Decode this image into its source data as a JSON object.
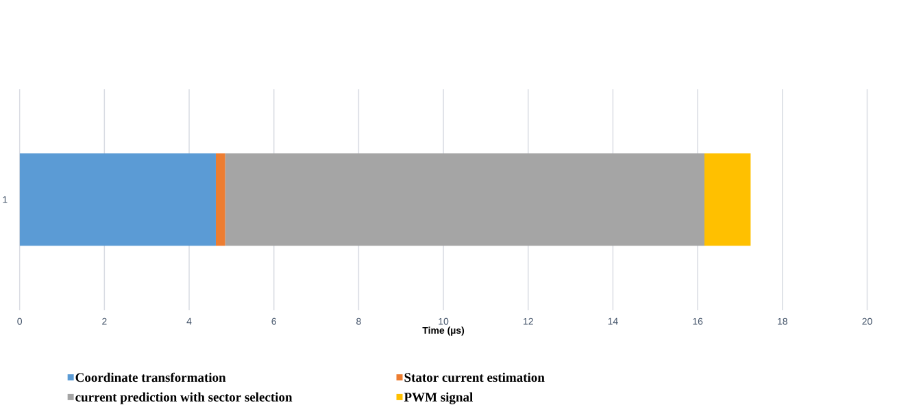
{
  "chart_data": {
    "type": "bar",
    "orientation": "horizontal",
    "stacked": true,
    "xlabel": "Time (µs)",
    "categories": [
      "1"
    ],
    "series": [
      {
        "name": "Coordinate transformation",
        "color": "#5b9bd5",
        "values": [
          4.63
        ]
      },
      {
        "name": "Stator current estimation",
        "color": "#ed7d31",
        "values": [
          0.22
        ]
      },
      {
        "name": "current prediction with sector selection",
        "color": "#a5a5a5",
        "values": [
          11.31
        ]
      },
      {
        "name": "PWM signal",
        "color": "#ffc000",
        "values": [
          1.09
        ]
      }
    ],
    "xlim": [
      0,
      20
    ],
    "xticks": [
      0,
      2,
      4,
      6,
      8,
      10,
      12,
      14,
      16,
      18,
      20
    ],
    "grid": "x",
    "legend": "bottom"
  }
}
